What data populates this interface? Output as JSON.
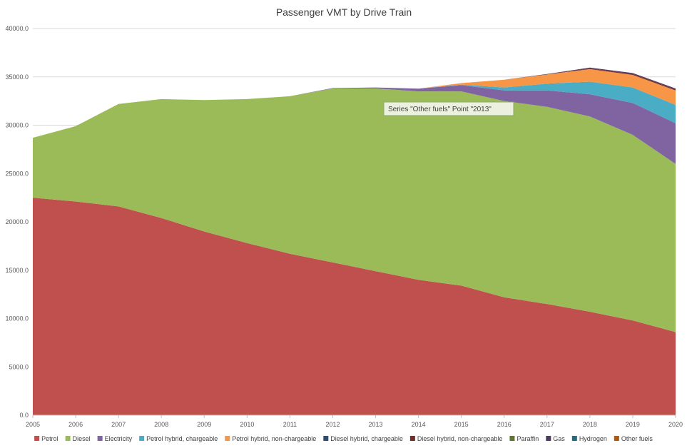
{
  "chart_data": {
    "type": "area",
    "stacked": true,
    "title": "Passenger VMT by Drive Train",
    "xlabel": "",
    "ylabel": "",
    "ylim": [
      0,
      40000
    ],
    "y_ticks": [
      "0.0",
      "5000.0",
      "10000.0",
      "15000.0",
      "20000.0",
      "25000.0",
      "30000.0",
      "35000.0",
      "40000.0"
    ],
    "categories": [
      "2005",
      "2006",
      "2007",
      "2008",
      "2009",
      "2010",
      "2011",
      "2012",
      "2013",
      "2014",
      "2015",
      "2016",
      "2017",
      "2018",
      "2019",
      "2020"
    ],
    "grid": "horizontal",
    "legend_position": "bottom",
    "series": [
      {
        "name": "Petrol",
        "color": "#C0504D",
        "values": [
          22500,
          22100,
          21600,
          20400,
          19000,
          17800,
          16700,
          15800,
          14900,
          14000,
          13400,
          12200,
          11500,
          10700,
          9800,
          8600
        ]
      },
      {
        "name": "Diesel",
        "color": "#9BBB59",
        "values": [
          6200,
          7800,
          10600,
          12300,
          13600,
          14900,
          16300,
          18000,
          18900,
          19500,
          20100,
          20300,
          20400,
          20200,
          19200,
          17400
        ]
      },
      {
        "name": "Electricity",
        "color": "#8064A2",
        "values": [
          0,
          0,
          0,
          0,
          0,
          0,
          0,
          50,
          100,
          280,
          650,
          1100,
          1700,
          2300,
          3300,
          4200
        ]
      },
      {
        "name": "Petrol hybrid, chargeable",
        "color": "#4BACC6",
        "values": [
          0,
          0,
          0,
          0,
          0,
          0,
          0,
          0,
          0,
          0,
          50,
          300,
          700,
          1300,
          1600,
          1900
        ]
      },
      {
        "name": "Petrol hybrid, non-chargeable",
        "color": "#F79646",
        "values": [
          0,
          0,
          0,
          0,
          0,
          0,
          0,
          0,
          0,
          0,
          150,
          800,
          950,
          1300,
          1300,
          1500
        ]
      },
      {
        "name": "Diesel hybrid, chargeable",
        "color": "#2C4D75",
        "values": [
          0,
          0,
          0,
          0,
          0,
          0,
          0,
          0,
          0,
          0,
          0,
          0,
          0,
          0,
          0,
          0
        ]
      },
      {
        "name": "Diesel hybrid, non-chargeable",
        "color": "#772C2A",
        "values": [
          0,
          0,
          0,
          0,
          0,
          0,
          0,
          0,
          0,
          0,
          0,
          0,
          0,
          80,
          100,
          100
        ]
      },
      {
        "name": "Paraffin",
        "color": "#5F7530",
        "values": [
          0,
          0,
          0,
          0,
          0,
          0,
          0,
          0,
          0,
          0,
          0,
          0,
          0,
          0,
          0,
          0
        ]
      },
      {
        "name": "Gas",
        "color": "#4D3B62",
        "values": [
          0,
          0,
          0,
          0,
          0,
          0,
          0,
          0,
          0,
          0,
          0,
          0,
          50,
          80,
          100,
          100
        ]
      },
      {
        "name": "Hydrogen",
        "color": "#276A7C",
        "values": [
          0,
          0,
          0,
          0,
          0,
          0,
          0,
          0,
          0,
          0,
          0,
          0,
          0,
          0,
          0,
          0
        ]
      },
      {
        "name": "Other fuels",
        "color": "#B65708",
        "values": [
          0,
          0,
          0,
          0,
          0,
          0,
          0,
          0,
          0,
          0,
          0,
          0,
          0,
          0,
          0,
          0
        ]
      }
    ],
    "tooltip": "Series \"Other fuels\" Point \"2013\""
  }
}
